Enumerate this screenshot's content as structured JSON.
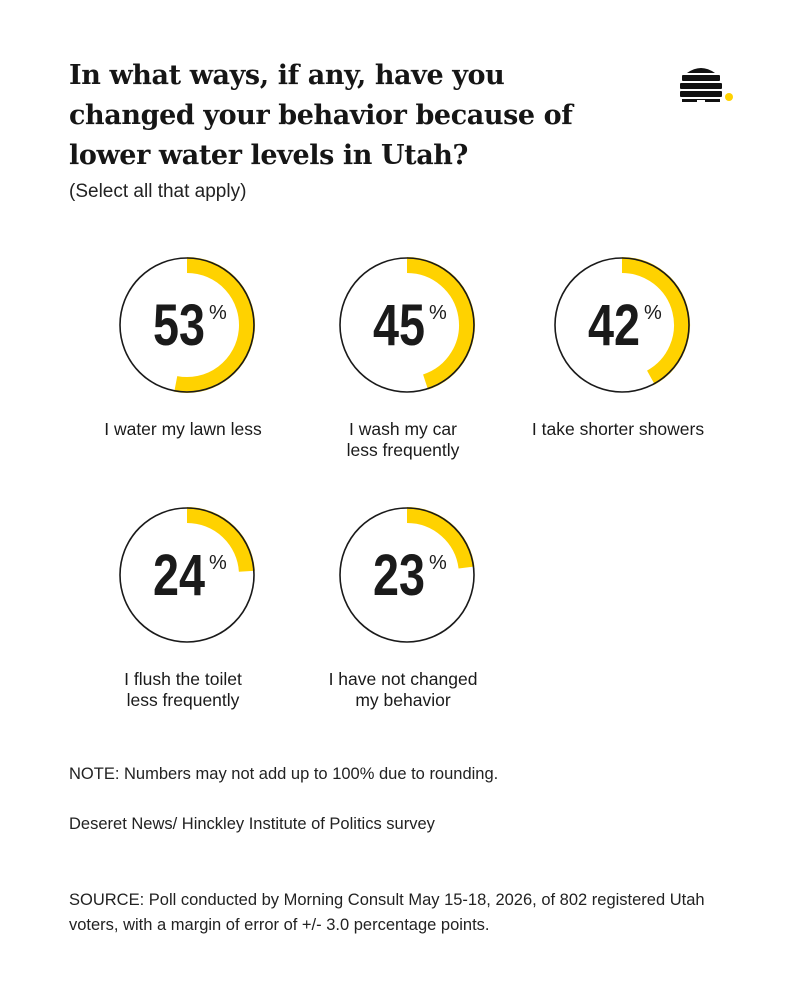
{
  "title": "In what ways, if any, have you changed your behavior because of lower water levels in Utah?",
  "subtitle": "(Select all that apply)",
  "logo_icon": "beehive-logo-icon",
  "colors": {
    "accent": "#FFD200",
    "ring": "#1a1a1a",
    "text": "#1a1a1a",
    "background": "#ffffff"
  },
  "chart_data": {
    "type": "donut",
    "unit": "%",
    "categories": [
      [
        "I water my lawn less"
      ],
      [
        "I wash my car",
        "less frequently"
      ],
      [
        "I take shorter showers"
      ],
      [
        "I flush the toilet",
        "less frequently"
      ],
      [
        "I have not changed",
        "my behavior"
      ]
    ],
    "values": [
      53,
      45,
      42,
      24,
      23
    ]
  },
  "note": "NOTE: Numbers may not add up to 100% due to rounding.",
  "credit": "Deseret News/ Hinckley Institute of Politics survey",
  "source": "SOURCE: Poll conducted by Morning Consult May 15-18, 2026, of 802 registered Utah voters, with a margin of error of +/- 3.0 percentage points."
}
